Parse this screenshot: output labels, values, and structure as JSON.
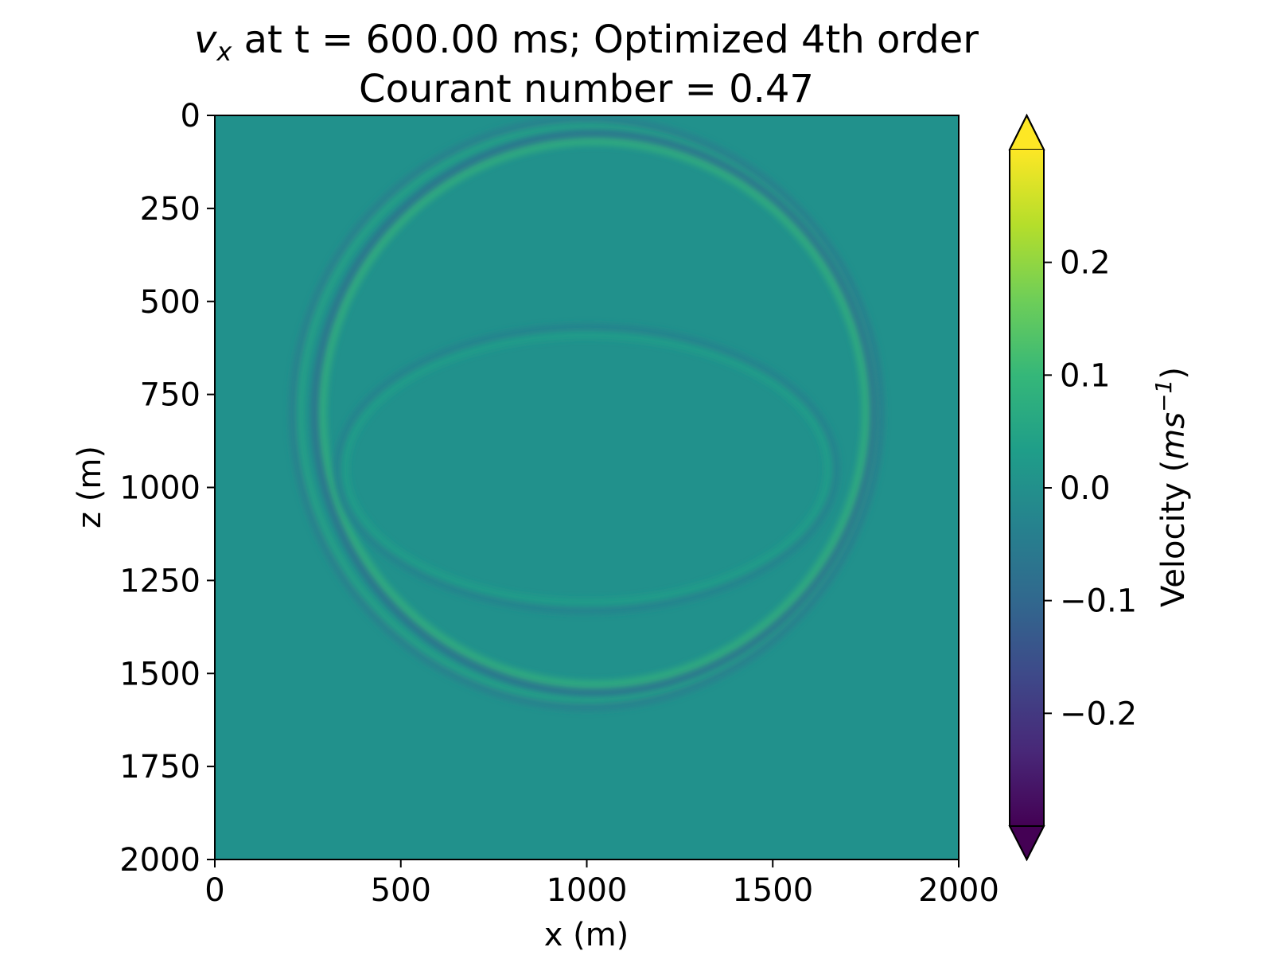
{
  "chart_data": {
    "type": "heatmap",
    "title": {
      "var_main": "v",
      "var_sub": "x",
      "rest": " at t = 600.00 ms; Optimized 4th order",
      "line2": "Courant number = 0.47"
    },
    "xlabel": "x (m)",
    "ylabel": "z (m)",
    "xlim": [
      0,
      2000
    ],
    "ylim": [
      2000,
      0
    ],
    "x_ticks": [
      0,
      500,
      1000,
      1500,
      2000
    ],
    "y_ticks": [
      0,
      250,
      500,
      750,
      1000,
      1250,
      1500,
      1750,
      2000
    ],
    "x_tick_labels": [
      "0",
      "500",
      "1000",
      "1500",
      "2000"
    ],
    "y_tick_labels": [
      "0",
      "250",
      "500",
      "750",
      "1000",
      "1250",
      "1500",
      "1750",
      "2000"
    ],
    "colormap": "viridis",
    "background_color": "#21918c",
    "colorbar": {
      "label_main": "Velocity (",
      "label_unit_base": "ms",
      "label_unit_exp": "−1",
      "label_close": ")",
      "vmin": -0.3,
      "vmax": 0.3,
      "extend": "both",
      "ticks": [
        -0.2,
        -0.1,
        0.0,
        0.1,
        0.2
      ],
      "tick_labels": [
        "−0.2",
        "−0.1",
        "0.0",
        "0.1",
        "0.2"
      ],
      "stops": [
        "#440154",
        "#482878",
        "#3e4989",
        "#31688e",
        "#26828e",
        "#1f9e89",
        "#35b779",
        "#6ece58",
        "#b5de2b",
        "#fde725"
      ]
    },
    "wavefronts": [
      {
        "name": "outer-ring",
        "cx": 1000,
        "cz": 800,
        "rx": 770,
        "rz": 770,
        "amplitude": 0.05
      },
      {
        "name": "main-ring",
        "cx": 1020,
        "cz": 800,
        "rx": 730,
        "rz": 730,
        "amplitude": 0.09
      },
      {
        "name": "inner-ellipse",
        "cx": 1000,
        "cz": 950,
        "rx": 650,
        "rz": 360,
        "amplitude": 0.04
      }
    ]
  }
}
